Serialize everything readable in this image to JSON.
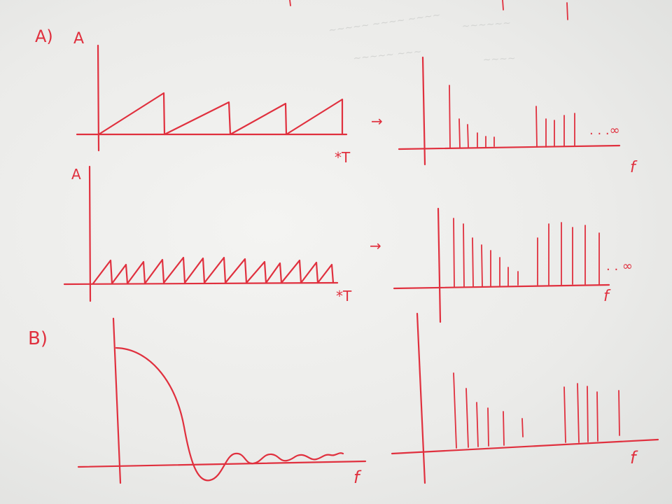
{
  "sections": {
    "a": {
      "label": "A)"
    },
    "b": {
      "label": "B)"
    }
  },
  "plots": {
    "a_top_signal": {
      "y_label": "A",
      "x_label": "*T"
    },
    "a_top_spectrum": {
      "x_label": "f",
      "continuation": ". . .∞"
    },
    "a_bottom_signal": {
      "y_label": "A",
      "x_label": "*T"
    },
    "a_bottom_spectrum": {
      "x_label": "f",
      "continuation": ". . ∞"
    },
    "b_signal": {
      "x_label": "f"
    },
    "b_spectrum": {
      "x_label": "f"
    }
  },
  "arrows": [
    "→",
    "→"
  ],
  "ink_color": "#e0303e"
}
